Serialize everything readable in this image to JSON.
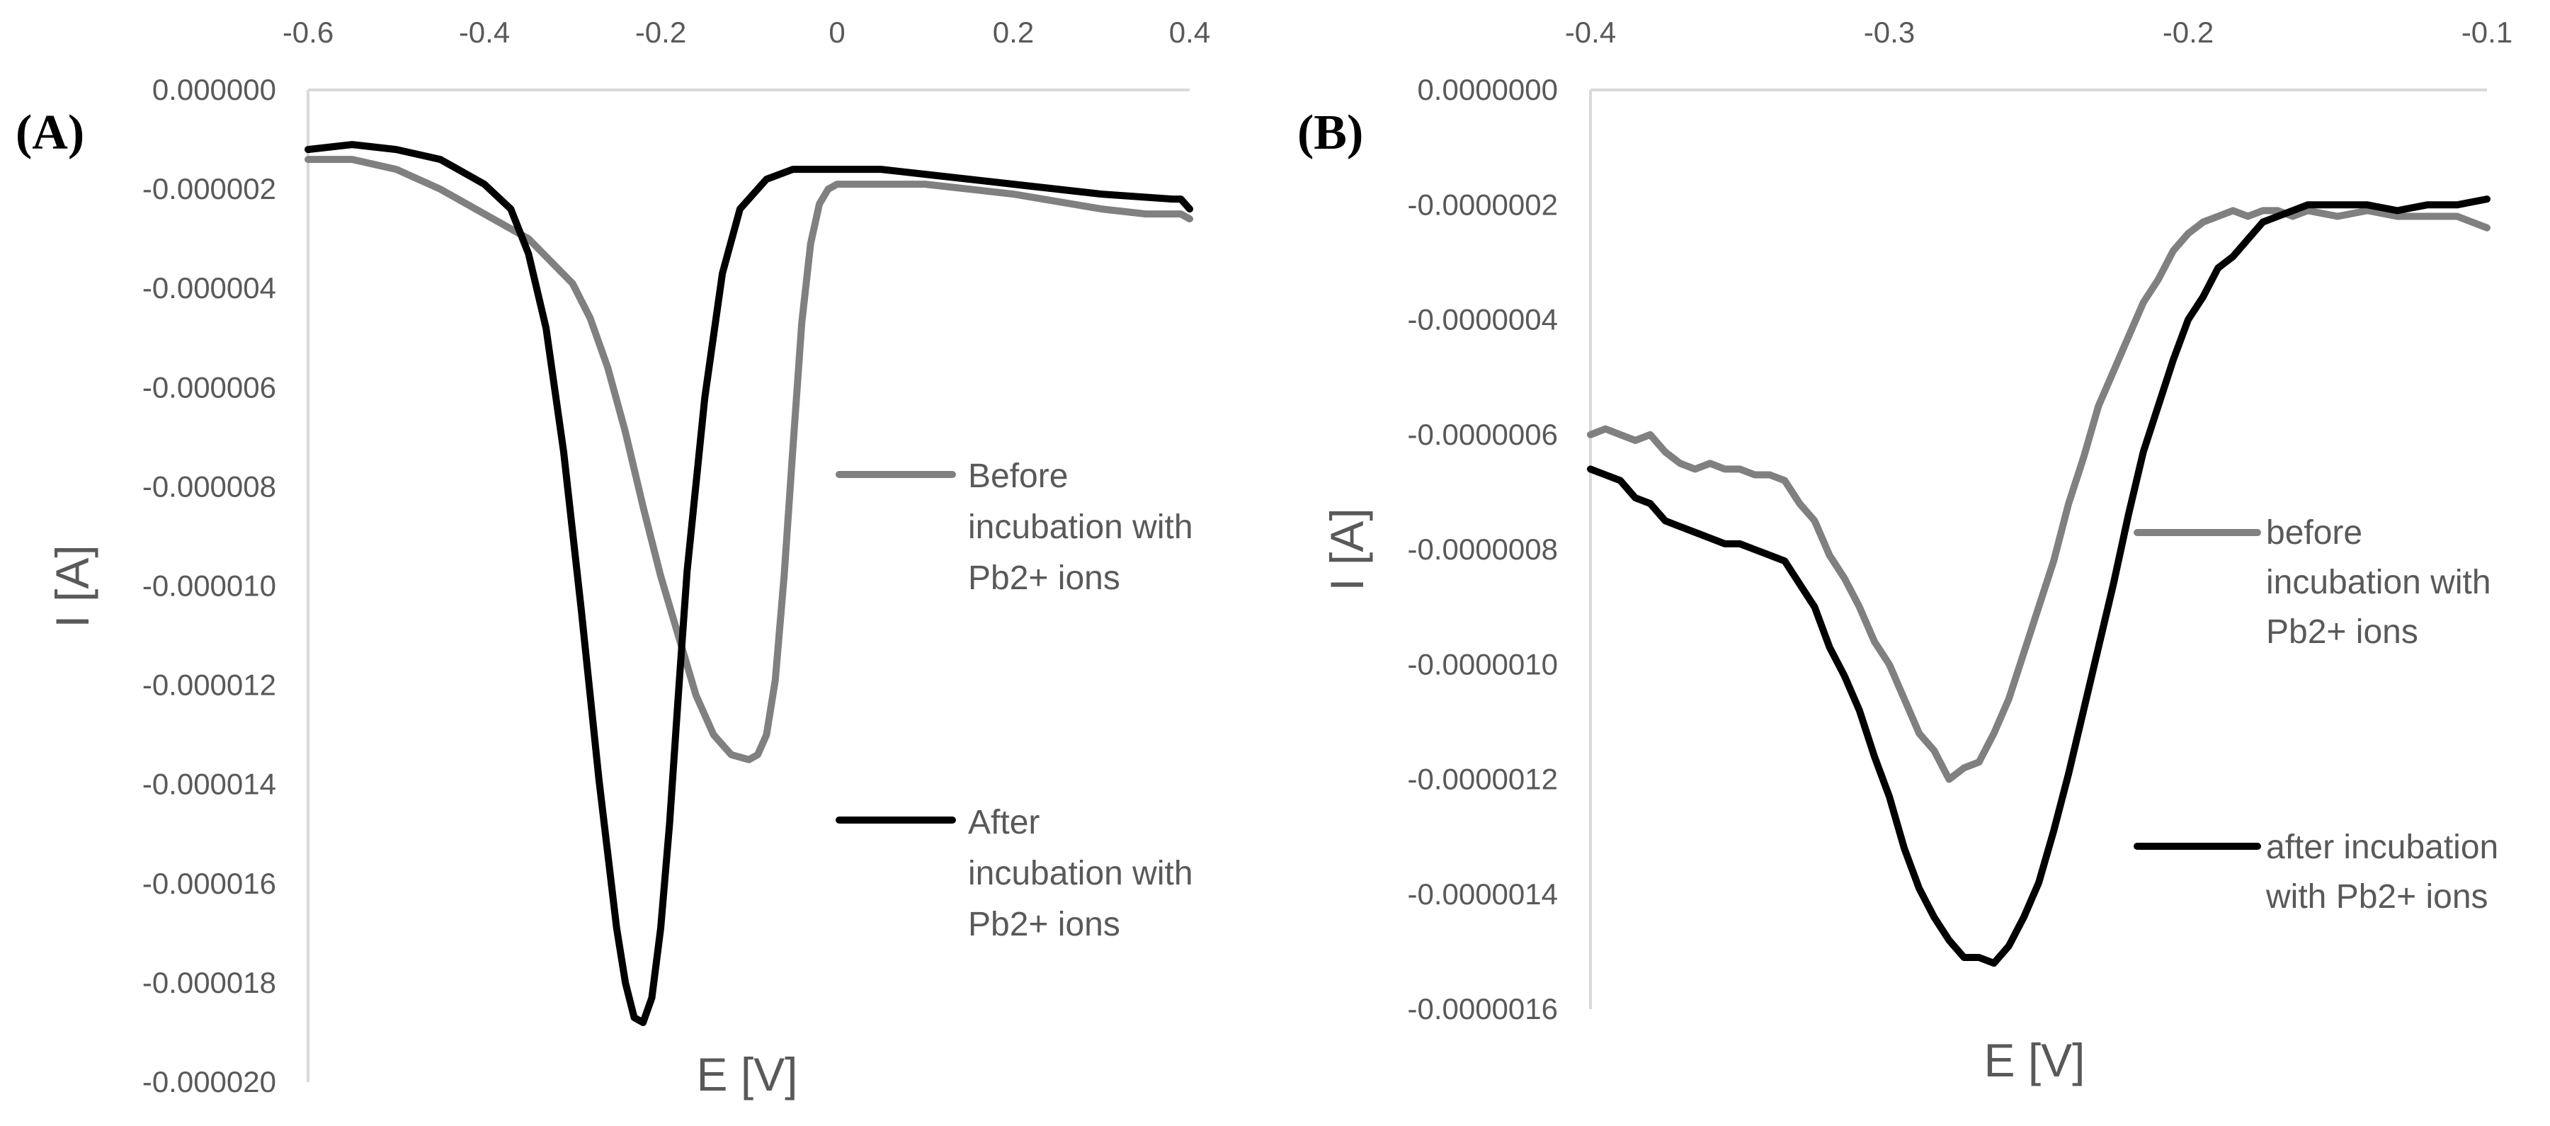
{
  "chart_data": [
    {
      "type": "line",
      "panel_label": "(A)",
      "title": "",
      "xlabel": "E [V]",
      "ylabel": "I [A]",
      "xlim": [
        -0.6,
        0.4
      ],
      "ylim": [
        -2e-05,
        0
      ],
      "x_ticks": [
        -0.6,
        -0.4,
        -0.2,
        0,
        0.2,
        0.4
      ],
      "x_tick_labels": [
        "-0.6",
        "-0.4",
        "-0.2",
        "0",
        "0.2",
        "0.4"
      ],
      "y_ticks": [
        0,
        -2e-06,
        -4e-06,
        -6e-06,
        -8e-06,
        -1e-05,
        -1.2e-05,
        -1.4e-05,
        -1.6e-05,
        -1.8e-05,
        -2e-05
      ],
      "y_tick_labels": [
        "0.000000",
        "-0.000002",
        "-0.000004",
        "-0.000006",
        "-0.000008",
        "-0.000010",
        "-0.000012",
        "-0.000014",
        "-0.000016",
        "-0.000018",
        "-0.000020"
      ],
      "x_axis_position": "top",
      "grid": false,
      "legend_position": "right",
      "series": [
        {
          "name": "Before incubation with Pb2+ ions",
          "legend_lines": [
            "Before",
            "incubation with",
            "Pb2+ ions"
          ],
          "color": "#808080",
          "x": [
            -0.6,
            -0.55,
            -0.5,
            -0.45,
            -0.4,
            -0.35,
            -0.3,
            -0.28,
            -0.26,
            -0.24,
            -0.22,
            -0.2,
            -0.18,
            -0.16,
            -0.14,
            -0.12,
            -0.1,
            -0.09,
            -0.08,
            -0.07,
            -0.06,
            -0.05,
            -0.04,
            -0.03,
            -0.02,
            -0.01,
            0,
            0.02,
            0.05,
            0.1,
            0.2,
            0.3,
            0.35,
            0.39,
            0.4
          ],
          "y": [
            -1.4e-06,
            -1.4e-06,
            -1.6e-06,
            -2e-06,
            -2.5e-06,
            -3e-06,
            -3.9e-06,
            -4.6e-06,
            -5.6e-06,
            -6.9e-06,
            -8.4e-06,
            -9.8e-06,
            -1.1e-05,
            -1.22e-05,
            -1.3e-05,
            -1.34e-05,
            -1.35e-05,
            -1.34e-05,
            -1.3e-05,
            -1.19e-05,
            -9.8e-06,
            -7.2e-06,
            -4.7e-06,
            -3.1e-06,
            -2.3e-06,
            -2e-06,
            -1.9e-06,
            -1.9e-06,
            -1.9e-06,
            -1.9e-06,
            -2.1e-06,
            -2.4e-06,
            -2.5e-06,
            -2.5e-06,
            -2.6e-06
          ]
        },
        {
          "name": "After incubation with Pb2+ ions",
          "legend_lines": [
            "After",
            "incubation with",
            "Pb2+ ions"
          ],
          "color": "#000000",
          "x": [
            -0.6,
            -0.55,
            -0.5,
            -0.45,
            -0.4,
            -0.37,
            -0.35,
            -0.33,
            -0.31,
            -0.29,
            -0.27,
            -0.25,
            -0.24,
            -0.23,
            -0.22,
            -0.21,
            -0.2,
            -0.19,
            -0.18,
            -0.17,
            -0.15,
            -0.13,
            -0.11,
            -0.08,
            -0.05,
            0,
            0.05,
            0.1,
            0.2,
            0.3,
            0.38,
            0.39,
            0.4
          ],
          "y": [
            -1.2e-06,
            -1.1e-06,
            -1.2e-06,
            -1.4e-06,
            -1.9e-06,
            -2.4e-06,
            -3.3e-06,
            -4.8e-06,
            -7.3e-06,
            -1.05e-05,
            -1.39e-05,
            -1.69e-05,
            -1.8e-05,
            -1.87e-05,
            -1.88e-05,
            -1.83e-05,
            -1.69e-05,
            -1.48e-05,
            -1.22e-05,
            -9.7e-06,
            -6.2e-06,
            -3.7e-06,
            -2.4e-06,
            -1.8e-06,
            -1.6e-06,
            -1.6e-06,
            -1.6e-06,
            -1.7e-06,
            -1.9e-06,
            -2.1e-06,
            -2.2e-06,
            -2.2e-06,
            -2.4e-06
          ]
        }
      ]
    },
    {
      "type": "line",
      "panel_label": "(B)",
      "title": "",
      "xlabel": "E [V]",
      "ylabel": "I [A]",
      "xlim": [
        -0.4,
        -0.1
      ],
      "ylim": [
        -1.6e-06,
        0
      ],
      "x_ticks": [
        -0.4,
        -0.3,
        -0.2,
        -0.1
      ],
      "x_tick_labels": [
        "-0.4",
        "-0.3",
        "-0.2",
        "-0.1"
      ],
      "y_ticks": [
        0,
        -2e-07,
        -4e-07,
        -6e-07,
        -8e-07,
        -1e-06,
        -1.2e-06,
        -1.4e-06,
        -1.6e-06
      ],
      "y_tick_labels": [
        "0.0000000",
        "-0.0000002",
        "-0.0000004",
        "-0.0000006",
        "-0.0000008",
        "-0.0000010",
        "-0.0000012",
        "-0.0000014",
        "-0.0000016"
      ],
      "x_axis_position": "top",
      "grid": false,
      "legend_position": "right",
      "series": [
        {
          "name": "before incubation with Pb2+ ions",
          "legend_lines": [
            "before",
            "incubation with",
            "Pb2+ ions"
          ],
          "color": "#808080",
          "x": [
            -0.4,
            -0.395,
            -0.39,
            -0.385,
            -0.38,
            -0.375,
            -0.37,
            -0.365,
            -0.36,
            -0.355,
            -0.35,
            -0.345,
            -0.34,
            -0.335,
            -0.33,
            -0.325,
            -0.32,
            -0.315,
            -0.31,
            -0.305,
            -0.3,
            -0.295,
            -0.29,
            -0.285,
            -0.28,
            -0.275,
            -0.27,
            -0.265,
            -0.26,
            -0.255,
            -0.25,
            -0.245,
            -0.24,
            -0.235,
            -0.23,
            -0.225,
            -0.22,
            -0.215,
            -0.21,
            -0.205,
            -0.2,
            -0.195,
            -0.19,
            -0.185,
            -0.18,
            -0.175,
            -0.17,
            -0.165,
            -0.16,
            -0.15,
            -0.14,
            -0.13,
            -0.12,
            -0.11,
            -0.1
          ],
          "y": [
            -6e-07,
            -5.9e-07,
            -6e-07,
            -6.1e-07,
            -6e-07,
            -6.3e-07,
            -6.5e-07,
            -6.6e-07,
            -6.5e-07,
            -6.6e-07,
            -6.6e-07,
            -6.7e-07,
            -6.7e-07,
            -6.8e-07,
            -7.2e-07,
            -7.5e-07,
            -8.1e-07,
            -8.5e-07,
            -9e-07,
            -9.6e-07,
            -1e-06,
            -1.06e-06,
            -1.12e-06,
            -1.15e-06,
            -1.2e-06,
            -1.18e-06,
            -1.17e-06,
            -1.12e-06,
            -1.06e-06,
            -9.8e-07,
            -9e-07,
            -8.2e-07,
            -7.2e-07,
            -6.4e-07,
            -5.5e-07,
            -4.9e-07,
            -4.3e-07,
            -3.7e-07,
            -3.3e-07,
            -2.8e-07,
            -2.5e-07,
            -2.3e-07,
            -2.2e-07,
            -2.1e-07,
            -2.2e-07,
            -2.1e-07,
            -2.1e-07,
            -2.2e-07,
            -2.1e-07,
            -2.2e-07,
            -2.1e-07,
            -2.2e-07,
            -2.2e-07,
            -2.2e-07,
            -2.4e-07
          ]
        },
        {
          "name": "after incubation with Pb2+ ions",
          "legend_lines": [
            "after incubation",
            "with Pb2+ ions"
          ],
          "color": "#000000",
          "x": [
            -0.4,
            -0.395,
            -0.39,
            -0.385,
            -0.38,
            -0.375,
            -0.37,
            -0.365,
            -0.36,
            -0.355,
            -0.35,
            -0.345,
            -0.34,
            -0.335,
            -0.33,
            -0.325,
            -0.32,
            -0.315,
            -0.31,
            -0.305,
            -0.3,
            -0.295,
            -0.29,
            -0.285,
            -0.28,
            -0.275,
            -0.27,
            -0.265,
            -0.26,
            -0.255,
            -0.25,
            -0.245,
            -0.24,
            -0.235,
            -0.23,
            -0.225,
            -0.22,
            -0.215,
            -0.21,
            -0.205,
            -0.2,
            -0.195,
            -0.19,
            -0.185,
            -0.18,
            -0.175,
            -0.17,
            -0.165,
            -0.16,
            -0.15,
            -0.14,
            -0.13,
            -0.12,
            -0.11,
            -0.1
          ],
          "y": [
            -6.6e-07,
            -6.7e-07,
            -6.8e-07,
            -7.1e-07,
            -7.2e-07,
            -7.5e-07,
            -7.6e-07,
            -7.7e-07,
            -7.8e-07,
            -7.9e-07,
            -7.9e-07,
            -8e-07,
            -8.1e-07,
            -8.2e-07,
            -8.6e-07,
            -9e-07,
            -9.7e-07,
            -1.02e-06,
            -1.08e-06,
            -1.16e-06,
            -1.23e-06,
            -1.32e-06,
            -1.39e-06,
            -1.44e-06,
            -1.48e-06,
            -1.51e-06,
            -1.51e-06,
            -1.52e-06,
            -1.49e-06,
            -1.44e-06,
            -1.38e-06,
            -1.29e-06,
            -1.19e-06,
            -1.08e-06,
            -9.7e-07,
            -8.6e-07,
            -7.4e-07,
            -6.3e-07,
            -5.5e-07,
            -4.7e-07,
            -4e-07,
            -3.6e-07,
            -3.1e-07,
            -2.9e-07,
            -2.6e-07,
            -2.3e-07,
            -2.2e-07,
            -2.1e-07,
            -2e-07,
            -2e-07,
            -2e-07,
            -2.1e-07,
            -2e-07,
            -2e-07,
            -1.9e-07
          ]
        }
      ]
    }
  ]
}
